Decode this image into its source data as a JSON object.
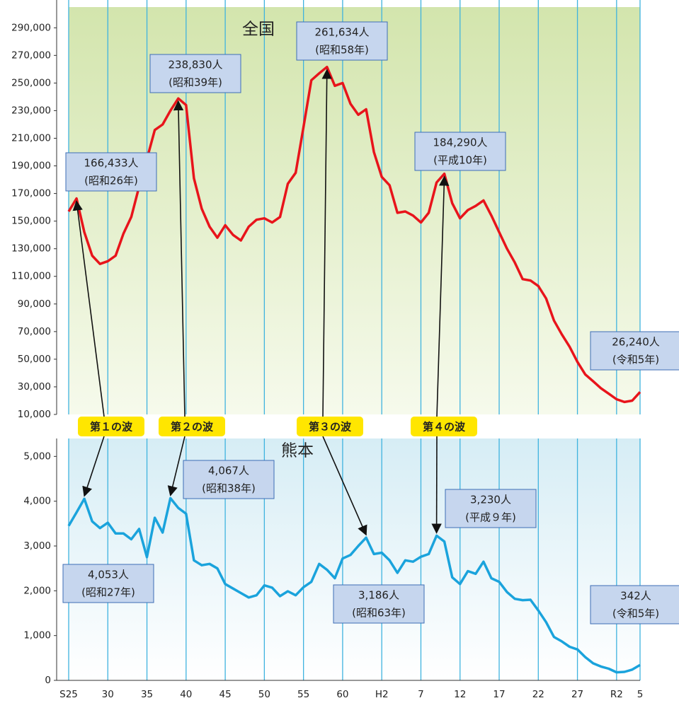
{
  "chart_data": {
    "type": "line",
    "categories": [
      "S25",
      null,
      null,
      null,
      null,
      "30",
      null,
      null,
      null,
      null,
      "35",
      null,
      null,
      null,
      null,
      "40",
      null,
      null,
      null,
      null,
      "45",
      null,
      null,
      null,
      null,
      "50",
      null,
      null,
      null,
      null,
      "55",
      null,
      null,
      null,
      null,
      "60",
      null,
      null,
      null,
      null,
      "H2",
      null,
      null,
      null,
      null,
      "7",
      null,
      null,
      null,
      null,
      "12",
      null,
      null,
      null,
      null,
      "17",
      null,
      null,
      null,
      null,
      "22",
      null,
      null,
      null,
      null,
      "27",
      null,
      null,
      null,
      null,
      "R2",
      null,
      null,
      "5"
    ],
    "annotations": [
      "第１の波",
      "第２の波",
      "第３の波",
      "第４の波"
    ],
    "panels": [
      {
        "title": "全国",
        "color": "#e8141b",
        "values": [
          157000,
          166433,
          142000,
          125000,
          119000,
          121000,
          125000,
          141000,
          153000,
          175000,
          195000,
          216000,
          220000,
          230000,
          238830,
          234000,
          181000,
          159000,
          146000,
          138000,
          147000,
          140000,
          136000,
          146000,
          151000,
          152000,
          149000,
          153000,
          177000,
          185000,
          218000,
          252000,
          257000,
          261634,
          248000,
          250000,
          235000,
          227000,
          231000,
          200000,
          182000,
          176000,
          156000,
          157000,
          154000,
          149000,
          156000,
          178000,
          184290,
          163000,
          152000,
          158000,
          161000,
          165000,
          154000,
          142000,
          130000,
          120000,
          108000,
          107000,
          103000,
          94000,
          78000,
          68000,
          59000,
          48000,
          39000,
          34000,
          29000,
          25000,
          21000,
          19000,
          20000,
          26240
        ],
        "value_labels": [
          null,
          "166,433人",
          null,
          null,
          null,
          null,
          null,
          null,
          null,
          null,
          null,
          null,
          null,
          null,
          "238,830人",
          null,
          null,
          null,
          null,
          null,
          null,
          null,
          null,
          null,
          null,
          null,
          null,
          null,
          null,
          null,
          null,
          null,
          null,
          "261,634人",
          null,
          null,
          null,
          null,
          null,
          null,
          null,
          null,
          null,
          null,
          null,
          null,
          null,
          null,
          "184,290人",
          null,
          null,
          null,
          null,
          null,
          null,
          null,
          null,
          null,
          null,
          null,
          null,
          null,
          null,
          null,
          null,
          null,
          null,
          null,
          null,
          null,
          null,
          null,
          null,
          "26,240人"
        ],
        "value_notes": [
          null,
          "(昭和26年)",
          null,
          null,
          null,
          null,
          null,
          null,
          null,
          null,
          null,
          null,
          null,
          null,
          "(昭和39年)",
          null,
          null,
          null,
          null,
          null,
          null,
          null,
          null,
          null,
          null,
          null,
          null,
          null,
          null,
          null,
          null,
          null,
          null,
          "(昭和58年)",
          null,
          null,
          null,
          null,
          null,
          null,
          null,
          null,
          null,
          null,
          null,
          null,
          null,
          null,
          "(平成10年)",
          null,
          null,
          null,
          null,
          null,
          null,
          null,
          null,
          null,
          null,
          null,
          null,
          null,
          null,
          null,
          null,
          null,
          null,
          null,
          null,
          null,
          null,
          null,
          null,
          "(令和5年)"
        ],
        "ylim": [
          10000,
          305000
        ],
        "yticks": [
          {
            "value": 10000,
            "label": "10,000"
          },
          {
            "value": 30000,
            "label": "30,000"
          },
          {
            "value": 50000,
            "label": "50,000"
          },
          {
            "value": 70000,
            "label": "70,000"
          },
          {
            "value": 90000,
            "label": "90,000"
          },
          {
            "value": 110000,
            "label": "110,000"
          },
          {
            "value": 130000,
            "label": "130,000"
          },
          {
            "value": 150000,
            "label": "150,000"
          },
          {
            "value": 170000,
            "label": "170,000"
          },
          {
            "value": 190000,
            "label": "190,000"
          },
          {
            "value": 210000,
            "label": "210,000"
          },
          {
            "value": 230000,
            "label": "230,000"
          },
          {
            "value": 250000,
            "label": "250,000"
          },
          {
            "value": 270000,
            "label": "270,000"
          },
          {
            "value": 290000,
            "label": "290,000"
          }
        ]
      },
      {
        "title": "熊本",
        "color": "#1aa3dc",
        "values": [
          3450,
          3750,
          4053,
          3550,
          3400,
          3520,
          3280,
          3280,
          3150,
          3380,
          2750,
          3630,
          3300,
          4067,
          3850,
          3720,
          2680,
          2570,
          2600,
          2500,
          2150,
          2050,
          1950,
          1850,
          1900,
          2120,
          2070,
          1880,
          1990,
          1900,
          2080,
          2200,
          2600,
          2470,
          2280,
          2720,
          2800,
          3000,
          3186,
          2820,
          2850,
          2680,
          2400,
          2680,
          2650,
          2760,
          2820,
          3230,
          3100,
          2300,
          2150,
          2440,
          2380,
          2650,
          2280,
          2200,
          1970,
          1820,
          1790,
          1800,
          1560,
          1300,
          970,
          870,
          750,
          690,
          520,
          380,
          310,
          260,
          180,
          190,
          240,
          342
        ],
        "value_labels": [
          null,
          null,
          "4,053人",
          null,
          null,
          null,
          null,
          null,
          null,
          null,
          null,
          null,
          null,
          "4,067人",
          null,
          null,
          null,
          null,
          null,
          null,
          null,
          null,
          null,
          null,
          null,
          null,
          null,
          null,
          null,
          null,
          null,
          null,
          null,
          null,
          null,
          null,
          null,
          null,
          "3,186人",
          null,
          null,
          null,
          null,
          null,
          null,
          null,
          null,
          "3,230人",
          null,
          null,
          null,
          null,
          null,
          null,
          null,
          null,
          null,
          null,
          null,
          null,
          null,
          null,
          null,
          null,
          null,
          null,
          null,
          null,
          null,
          null,
          null,
          null,
          null,
          "342人"
        ],
        "value_notes": [
          null,
          null,
          "(昭和27年)",
          null,
          null,
          null,
          null,
          null,
          null,
          null,
          null,
          null,
          null,
          "(昭和38年)",
          null,
          null,
          null,
          null,
          null,
          null,
          null,
          null,
          null,
          null,
          null,
          null,
          null,
          null,
          null,
          null,
          null,
          null,
          null,
          null,
          null,
          null,
          null,
          null,
          "(昭和63年)",
          null,
          null,
          null,
          null,
          null,
          null,
          null,
          null,
          "(平成９年)",
          null,
          null,
          null,
          null,
          null,
          null,
          null,
          null,
          null,
          null,
          null,
          null,
          null,
          null,
          null,
          null,
          null,
          null,
          null,
          null,
          null,
          null,
          null,
          null,
          null,
          "(令和5年)"
        ],
        "ylim": [
          0,
          5400
        ],
        "yticks": [
          0,
          {
            "value": 1000,
            "label": "1,000"
          },
          {
            "value": 2000,
            "label": "2,000"
          },
          {
            "value": 3000,
            "label": "3,000"
          },
          {
            "value": 4000,
            "label": "4,000"
          },
          {
            "value": 5000,
            "label": "5,000"
          }
        ]
      }
    ]
  }
}
